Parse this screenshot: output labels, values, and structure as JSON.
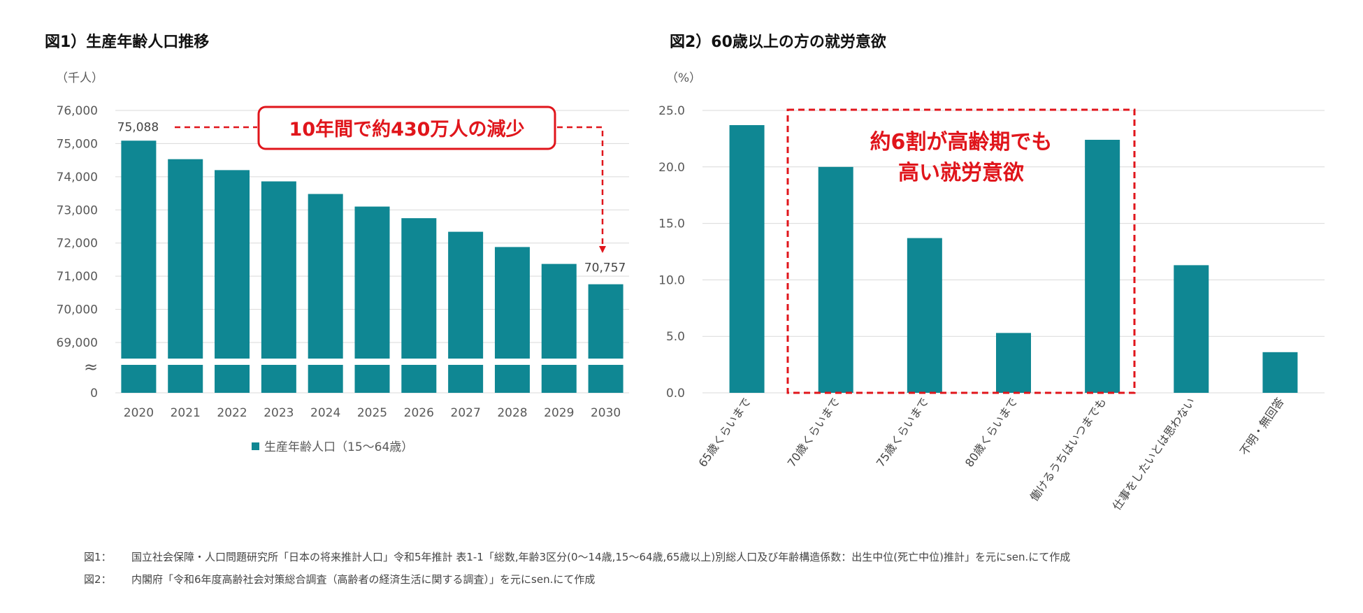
{
  "colors": {
    "bar": "#0f8793",
    "accent": "#e0151b",
    "grid": "#d9d9d9",
    "tick": "#595959"
  },
  "chart_data": [
    {
      "type": "bar",
      "title": "図1）生産年齢人口推移",
      "unit": "（千人）",
      "categories": [
        "2020",
        "2021",
        "2022",
        "2023",
        "2024",
        "2025",
        "2026",
        "2027",
        "2028",
        "2029",
        "2030"
      ],
      "series": [
        {
          "name": "生産年齢人口（15～64歳）",
          "values": [
            75088,
            74530,
            74200,
            73860,
            73480,
            73100,
            72750,
            72340,
            71880,
            71370,
            70757
          ]
        }
      ],
      "ylim": [
        69000,
        76000
      ],
      "yticks": [
        "76,000",
        "75,000",
        "74,000",
        "73,000",
        "72,000",
        "71,000",
        "70,000",
        "69,000"
      ],
      "axis_break_symbol": "≈",
      "zero_label": "0",
      "data_labels": {
        "first": "75,088",
        "last": "70,757"
      },
      "annotation": "10年間で約430万人の減少",
      "legend": "生産年齢人口（15～64歳）"
    },
    {
      "type": "bar",
      "title": "図2）60歳以上の方の就労意欲",
      "unit": "（%）",
      "categories": [
        "65歳くらいまで",
        "70歳くらいまで",
        "75歳くらいまで",
        "80歳くらいまで",
        "働けるうちはいつまでも",
        "仕事をしたいとは思わない",
        "不明・無回答"
      ],
      "values": [
        23.7,
        20.0,
        13.7,
        5.3,
        22.4,
        11.3,
        3.6
      ],
      "ylim": [
        0,
        25
      ],
      "yticks": [
        "25.0",
        "20.0",
        "15.0",
        "10.0",
        "5.0",
        "0.0"
      ],
      "annotation": [
        "約6割が高齢期でも",
        "高い就労意欲"
      ]
    }
  ],
  "footnotes": [
    {
      "label": "図1：",
      "text": "国立社会保障・人口問題研究所「日本の将来推計人口」令和5年推計 表1-1「総数,年齢3区分(0～14歳,15～64歳,65歳以上)別総人口及び年齢構造係数：出生中位(死亡中位)推計」を元にsen.にて作成"
    },
    {
      "label": "図2：",
      "text": "内閣府「令和6年度高齢社会対策総合調査（高齢者の経済生活に関する調査）」を元にsen.にて作成"
    }
  ]
}
